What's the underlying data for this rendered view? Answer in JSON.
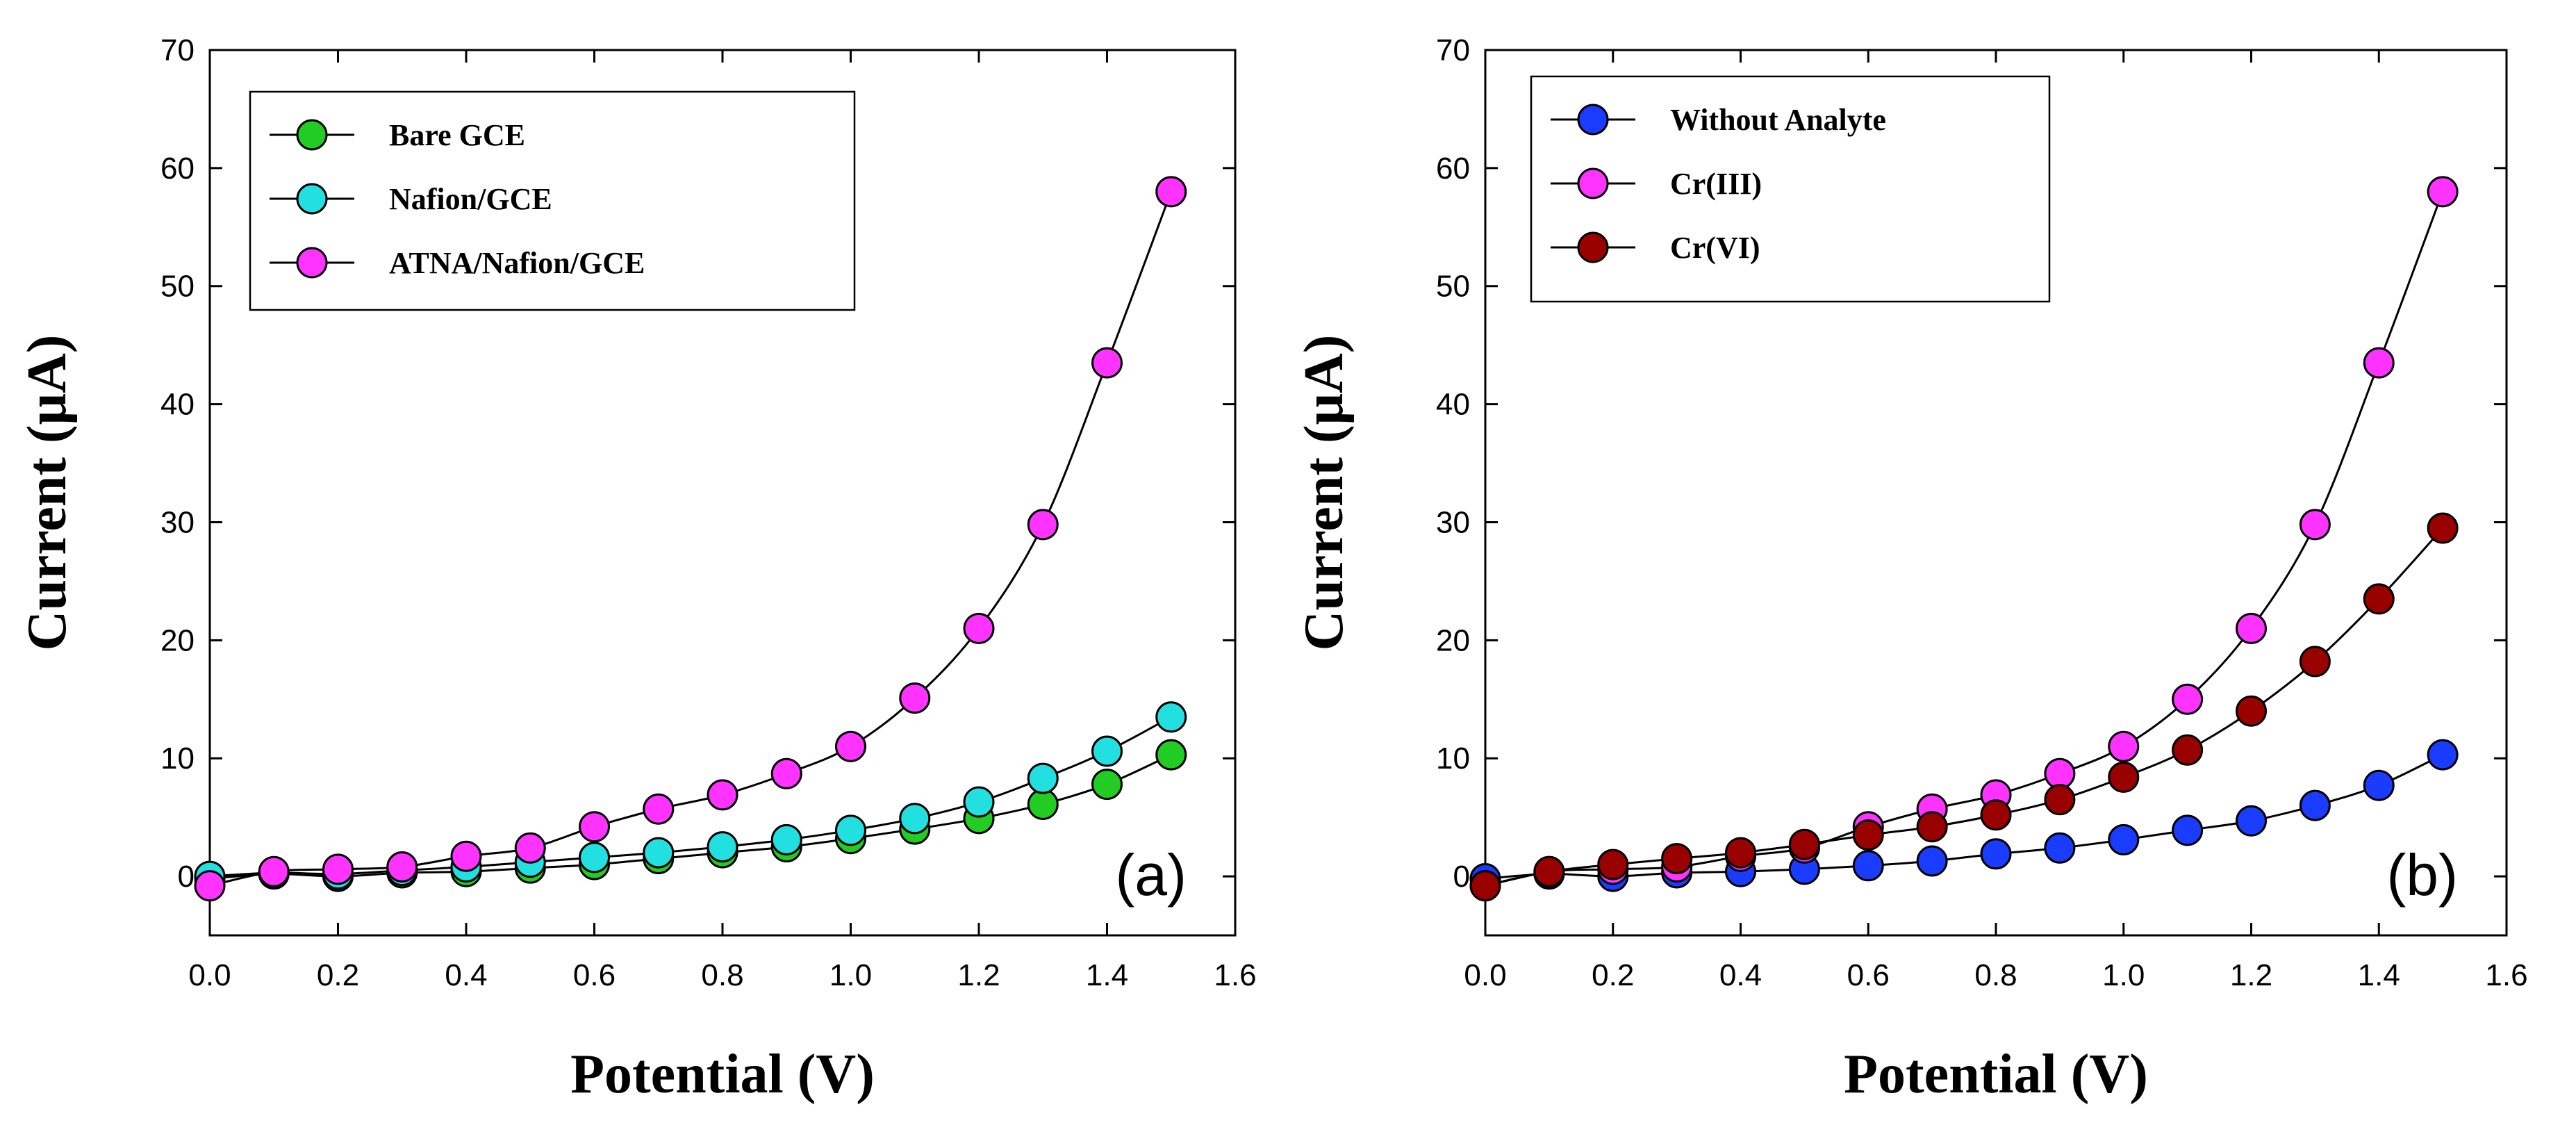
{
  "chart_data": [
    {
      "type": "line",
      "panel_label": "(a)",
      "xlabel": "Potential (V)",
      "ylabel": "Current (μA)",
      "xlim": [
        0.0,
        1.6
      ],
      "ylim": [
        -5,
        70
      ],
      "xticks": [
        "0.0",
        "0.2",
        "0.4",
        "0.6",
        "0.8",
        "1.0",
        "1.2",
        "1.4",
        "1.6"
      ],
      "yticks": [
        "0",
        "10",
        "20",
        "30",
        "40",
        "50",
        "60",
        "70"
      ],
      "legend_position": "top-left",
      "x": [
        0.0,
        0.1,
        0.2,
        0.3,
        0.4,
        0.5,
        0.6,
        0.7,
        0.8,
        0.9,
        1.0,
        1.1,
        1.2,
        1.3,
        1.4,
        1.5
      ],
      "series": [
        {
          "name": "Bare GCE",
          "color": "#22cc22",
          "values": [
            -0.2,
            0.2,
            0.0,
            0.3,
            0.4,
            0.7,
            1.0,
            1.5,
            2.0,
            2.5,
            3.2,
            4.0,
            4.9,
            6.1,
            7.8,
            10.3
          ]
        },
        {
          "name": "Nafion/GCE",
          "color": "#22e0e0",
          "values": [
            0.0,
            0.3,
            0.2,
            0.5,
            0.8,
            1.2,
            1.6,
            2.0,
            2.5,
            3.1,
            3.9,
            4.9,
            6.3,
            8.3,
            10.6,
            13.5
          ]
        },
        {
          "name": "ATNA/Nafion/GCE",
          "color": "#ff33ff",
          "values": [
            -0.8,
            0.4,
            0.6,
            0.8,
            1.7,
            2.4,
            4.2,
            5.7,
            6.9,
            8.7,
            11.0,
            15.1,
            21.0,
            29.8,
            43.5,
            58.0
          ]
        }
      ]
    },
    {
      "type": "line",
      "panel_label": "(b)",
      "xlabel": "Potential (V)",
      "ylabel": "Current (μA)",
      "xlim": [
        0.0,
        1.6
      ],
      "ylim": [
        -5,
        70
      ],
      "xticks": [
        "0.0",
        "0.2",
        "0.4",
        "0.6",
        "0.8",
        "1.0",
        "1.2",
        "1.4",
        "1.6"
      ],
      "yticks": [
        "0",
        "10",
        "20",
        "30",
        "40",
        "50",
        "60",
        "70"
      ],
      "legend_position": "top-left",
      "x": [
        0.0,
        0.1,
        0.2,
        0.3,
        0.4,
        0.5,
        0.6,
        0.7,
        0.8,
        0.9,
        1.0,
        1.1,
        1.2,
        1.3,
        1.4,
        1.5
      ],
      "series": [
        {
          "name": "Without Analyte",
          "color": "#1a3cff",
          "values": [
            -0.2,
            0.2,
            0.0,
            0.3,
            0.4,
            0.6,
            0.9,
            1.3,
            1.9,
            2.4,
            3.1,
            3.9,
            4.7,
            6.0,
            7.7,
            10.3
          ]
        },
        {
          "name": "Cr(III)",
          "color": "#ff33ff",
          "values": [
            -0.8,
            0.4,
            0.6,
            0.8,
            1.7,
            2.4,
            4.2,
            5.7,
            6.9,
            8.7,
            11.0,
            15.0,
            21.0,
            29.8,
            43.5,
            58.0
          ]
        },
        {
          "name": "Cr(VI)",
          "color": "#990000",
          "values": [
            -0.8,
            0.4,
            1.0,
            1.5,
            2.0,
            2.7,
            3.5,
            4.2,
            5.2,
            6.5,
            8.4,
            10.7,
            14.0,
            18.2,
            23.5,
            29.5
          ]
        }
      ]
    }
  ]
}
